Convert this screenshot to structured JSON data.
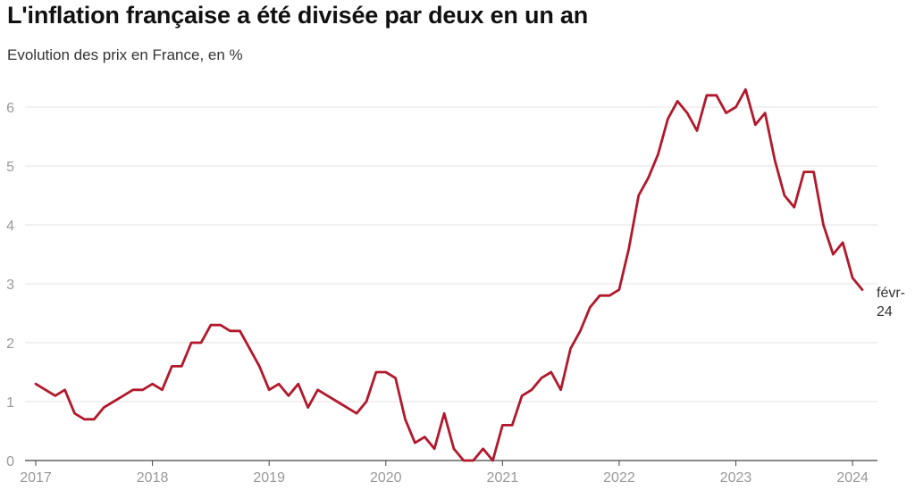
{
  "header": {
    "title": "L'inflation française a été divisée par deux en un an",
    "subtitle": "Evolution des prix en France, en %"
  },
  "colors": {
    "line": "#b2182b",
    "grid": "#e3e3e3",
    "axis": "#444444",
    "tick_text": "#999999"
  },
  "chart_data": {
    "type": "line",
    "title": "L'inflation française a été divisée par deux en un an",
    "subtitle": "Evolution des prix en France, en %",
    "xlabel": "",
    "ylabel": "",
    "ylim": [
      0,
      6.3
    ],
    "yticks": [
      "0",
      "1",
      "2",
      "3",
      "4",
      "5",
      "6"
    ],
    "xticks": [
      "2017",
      "2018",
      "2019",
      "2020",
      "2021",
      "2022",
      "2023",
      "2024"
    ],
    "grid": true,
    "end_label": [
      "févr-",
      "24"
    ],
    "x_start": "2017-01",
    "x_end": "2024-02",
    "series": [
      {
        "values": [
          1.3,
          1.2,
          1.1,
          1.2,
          0.8,
          0.7,
          0.7,
          0.9,
          1.0,
          1.1,
          1.2,
          1.2,
          1.3,
          1.2,
          1.6,
          1.6,
          2.0,
          2.0,
          2.3,
          2.3,
          2.2,
          2.2,
          1.9,
          1.6,
          1.2,
          1.3,
          1.1,
          1.3,
          0.9,
          1.2,
          1.1,
          1.0,
          0.9,
          0.8,
          1.0,
          1.5,
          1.5,
          1.4,
          0.7,
          0.3,
          0.4,
          0.2,
          0.8,
          0.2,
          0.0,
          0.0,
          0.2,
          0.0,
          0.6,
          0.6,
          1.1,
          1.2,
          1.4,
          1.5,
          1.2,
          1.9,
          2.2,
          2.6,
          2.8,
          2.8,
          2.9,
          3.6,
          4.5,
          4.8,
          5.2,
          5.8,
          6.1,
          5.9,
          5.6,
          6.2,
          6.2,
          5.9,
          6.0,
          6.3,
          5.7,
          5.9,
          5.1,
          4.5,
          4.3,
          4.9,
          4.9,
          4.0,
          3.5,
          3.7,
          3.1,
          2.9
        ]
      }
    ]
  }
}
